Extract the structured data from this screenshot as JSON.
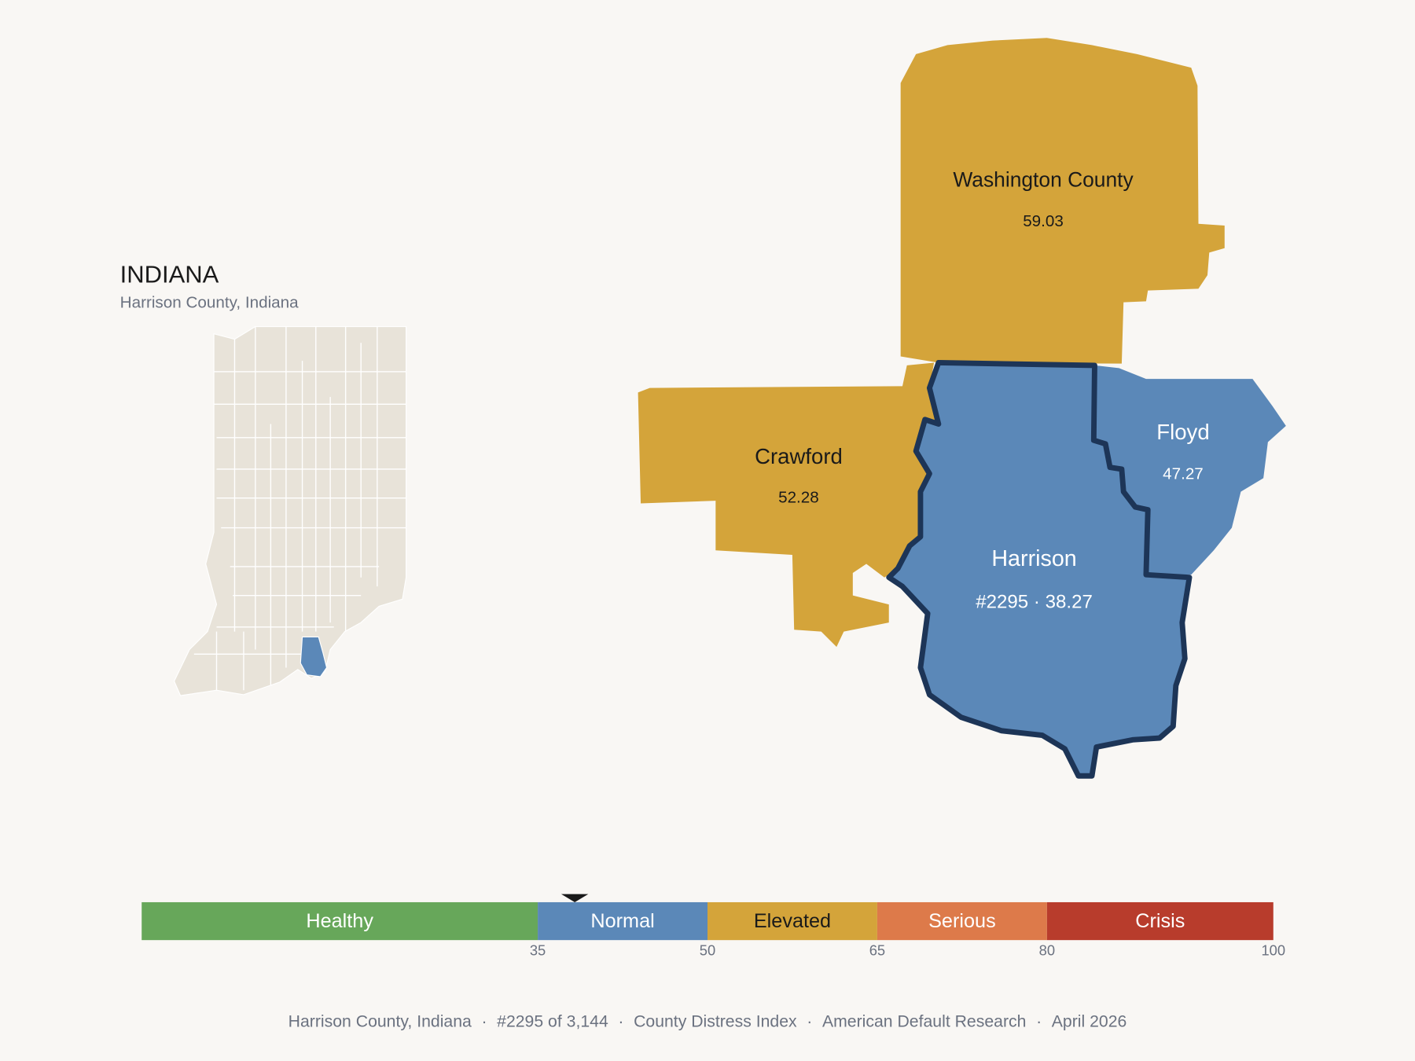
{
  "inset": {
    "title": "INDIANA",
    "subtitle": "Harrison County, Indiana"
  },
  "counties": [
    {
      "name": "Washington County",
      "score": 59.03,
      "color": "#d4a43a",
      "text_color": "#1a1a1a"
    },
    {
      "name": "Crawford",
      "score": 52.28,
      "color": "#d4a43a",
      "text_color": "#1a1a1a"
    },
    {
      "name": "Floyd",
      "score": 47.27,
      "color": "#5b88b8",
      "text_color": "#ffffff"
    },
    {
      "name": "Harrison",
      "score": 38.27,
      "value_label": "#2295 · 38.27",
      "color": "#5b88b8",
      "text_color": "#ffffff"
    }
  ],
  "scale": {
    "lim": [
      0,
      100
    ],
    "ticks": [
      35,
      50,
      65,
      80,
      100
    ],
    "bands": [
      {
        "label": "Healthy",
        "color": "#67a75a",
        "text_color": "#ffffff"
      },
      {
        "label": "Normal",
        "color": "#5b88b8",
        "text_color": "#ffffff"
      },
      {
        "label": "Elevated",
        "color": "#d4a43a",
        "text_color": "#1a1a1a"
      },
      {
        "label": "Serious",
        "color": "#dd7a4a",
        "text_color": "#ffffff"
      },
      {
        "label": "Crisis",
        "color": "#b83c2c",
        "text_color": "#ffffff"
      }
    ]
  },
  "footer": {
    "items": [
      "Harrison County, Indiana",
      "#2295 of 3,144",
      "County Distress Index",
      "American Default Research",
      "April 2026"
    ],
    "separator": "·"
  }
}
